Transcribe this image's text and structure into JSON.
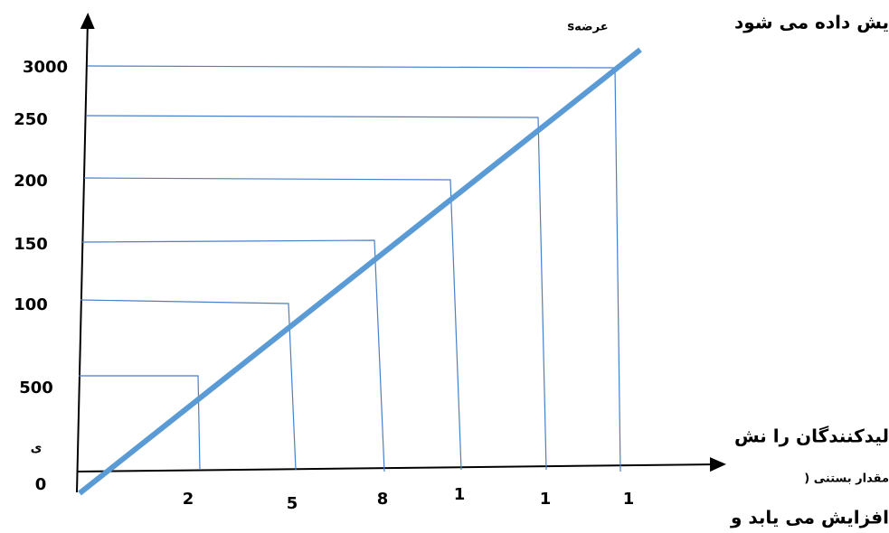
{
  "diagram": {
    "curve_label": "sعرضه",
    "y_labels": [
      "3000",
      "250",
      "200",
      "150",
      "100",
      "500",
      "0"
    ],
    "x_labels": [
      "2",
      "5",
      "8",
      "1",
      "1",
      "1"
    ],
    "texts": [
      "یش داده می شود",
      "لیدکنندگان را نش",
      "ی",
      ") مقدار بستنی",
      "افزایش می یابد و"
    ]
  }
}
